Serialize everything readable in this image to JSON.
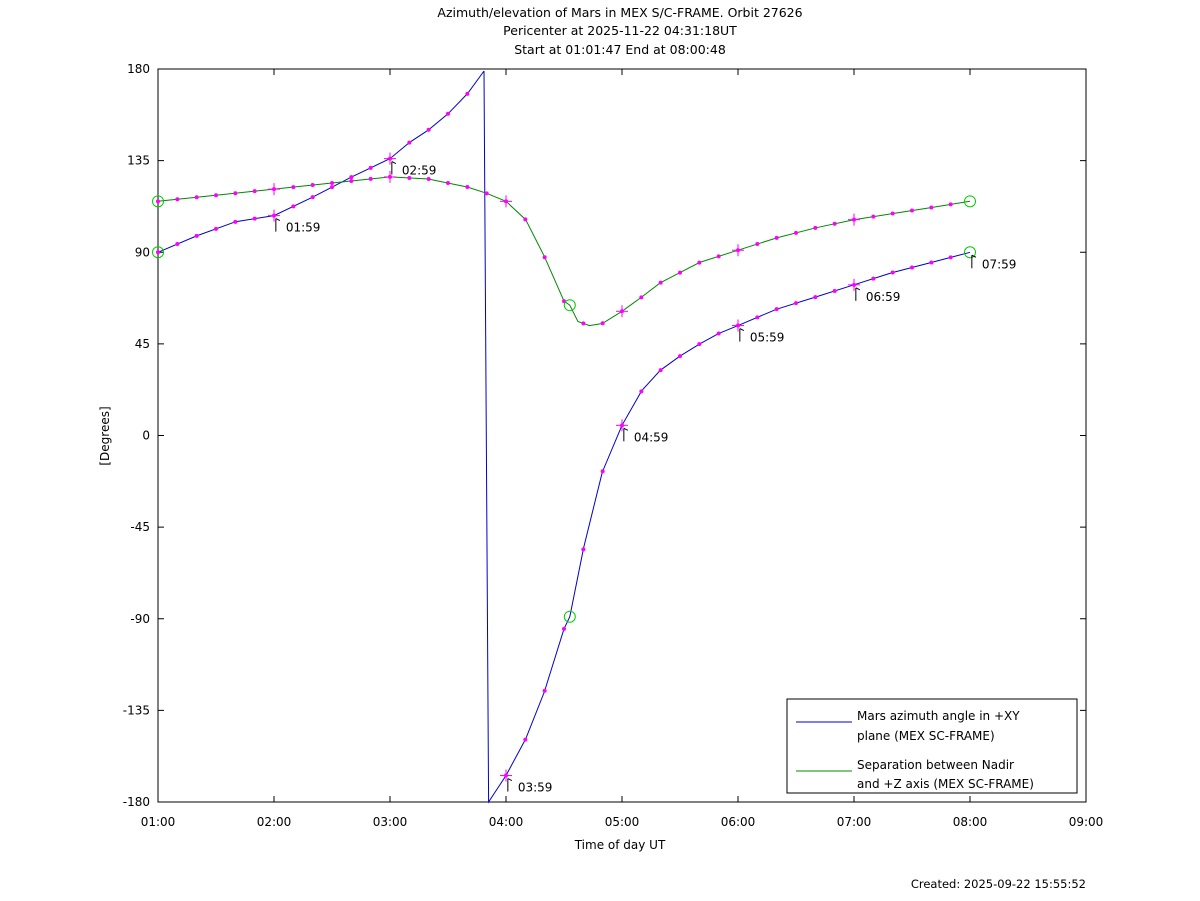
{
  "title_lines": [
    "Azimuth/elevation of Mars in MEX S/C-FRAME.  Orbit 27626",
    "Pericenter at 2025-11-22 04:31:18UT",
    "Start at 01:01:47 End at 08:00:48"
  ],
  "footer": {
    "created": "Created: 2025-09-22 15:55:52"
  },
  "colors": {
    "azimuth": "#0000cc",
    "separation": "#008800",
    "markers": "#ff00ff",
    "circles": "#00cc00"
  },
  "chart_data": {
    "type": "line",
    "xlabel": "Time of day UT",
    "ylabel": "[Degrees]",
    "xlim": [
      1.0,
      9.0
    ],
    "ylim": [
      -180,
      180
    ],
    "x_unit": "hours of day UT",
    "x_ticks": [
      "01:00",
      "02:00",
      "03:00",
      "04:00",
      "05:00",
      "06:00",
      "07:00",
      "08:00",
      "09:00"
    ],
    "y_ticks": [
      "180",
      "135",
      "90",
      "45",
      "0",
      "-45",
      "-90",
      "-135",
      "-180"
    ],
    "grid": false,
    "legend": "bottom-right",
    "series": [
      {
        "name_lines": [
          "Mars azimuth angle in +XY",
          "plane (MEX SC-FRAME)"
        ],
        "color": "#0000cc",
        "segments": [
          {
            "x": [
              1.0,
              1.33,
              1.67,
              2.0,
              2.33,
              2.67,
              3.0,
              3.17,
              3.33,
              3.5,
              3.67,
              3.81
            ],
            "y": [
              90,
              98,
              105,
              108,
              117,
              127,
              136,
              144,
              150,
              158,
              168,
              179
            ]
          },
          {
            "x": [
              3.81,
              3.83
            ],
            "y": [
              179,
              0
            ]
          },
          {
            "x": [
              3.83,
              3.85,
              4.0,
              4.17,
              4.33,
              4.5,
              4.55,
              4.67,
              4.83,
              5.0,
              5.17,
              5.33,
              5.5,
              5.67,
              5.83,
              6.0,
              6.33,
              6.67,
              7.0,
              7.33,
              7.67,
              8.0
            ],
            "y": [
              0,
              -180,
              -167,
              -149,
              -126,
              -95,
              -89,
              -55,
              -18,
              5,
              22,
              32,
              39,
              45,
              50,
              54,
              62,
              68,
              74,
              80,
              85,
              90
            ]
          }
        ],
        "labels": [
          {
            "x": 1.99,
            "y": 108,
            "text": "01:59"
          },
          {
            "x": 2.99,
            "y": 136,
            "text": "02:59"
          },
          {
            "x": 3.99,
            "y": -167,
            "text": "03:59"
          },
          {
            "x": 4.99,
            "y": 5,
            "text": "04:59"
          },
          {
            "x": 5.99,
            "y": 54,
            "text": "05:59"
          },
          {
            "x": 6.99,
            "y": 74,
            "text": "06:59"
          },
          {
            "x": 7.99,
            "y": 90,
            "text": "07:59"
          }
        ],
        "plus_markers_x": [
          2.0,
          3.0,
          4.0,
          5.0,
          6.0,
          7.0
        ],
        "circle_markers_x": [
          1.0,
          4.55,
          8.0
        ]
      },
      {
        "name_lines": [
          "Separation between Nadir",
          "and +Z axis (MEX SC-FRAME)"
        ],
        "color": "#008800",
        "segments": [
          {
            "x": [
              1.0,
              1.5,
              2.0,
              2.5,
              2.83,
              3.0,
              3.33,
              3.67,
              3.83,
              4.0,
              4.17,
              4.33,
              4.5,
              4.55,
              4.62,
              4.72,
              4.83,
              5.0,
              5.17,
              5.33,
              5.5,
              5.67,
              6.0,
              6.33,
              6.67,
              7.0,
              7.33,
              7.67,
              8.0
            ],
            "y": [
              115,
              118,
              121,
              124,
              126,
              127,
              126,
              122,
              119,
              115,
              106,
              88,
              66,
              64,
              56,
              54,
              55,
              61,
              68,
              75,
              80,
              85,
              91,
              97,
              102,
              106,
              109,
              112,
              115
            ]
          }
        ],
        "labels": [],
        "plus_markers_x": [
          2.0,
          3.0,
          4.0,
          5.0,
          6.0,
          7.0
        ],
        "circle_markers_x": [
          1.0,
          4.55,
          8.0
        ]
      }
    ]
  }
}
